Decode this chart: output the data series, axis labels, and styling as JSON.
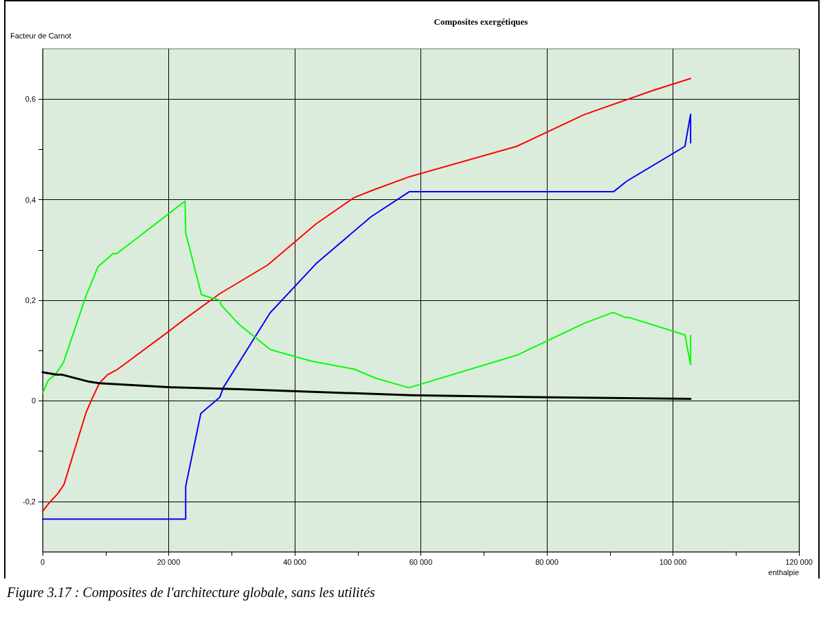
{
  "chart_data": {
    "type": "line",
    "title": "Composites exergétiques",
    "xlabel": "enthalpie",
    "ylabel": "Facteur de Carnot",
    "annotations": [
      "Figure 3.17 : Composites de l'architecture globale, sans les utilités"
    ],
    "xlim": [
      0,
      120000
    ],
    "xticks": [
      0,
      {
        "value": 10000,
        "label": null
      },
      {
        "value": 20000,
        "label": "20 000"
      },
      {
        "value": 30000,
        "label": null
      },
      {
        "value": 40000,
        "label": "40 000"
      },
      {
        "value": 50000,
        "label": null
      },
      {
        "value": 60000,
        "label": "60 000"
      },
      {
        "value": 70000,
        "label": null
      },
      {
        "value": 80000,
        "label": "80 000"
      },
      {
        "value": 90000,
        "label": null
      },
      {
        "value": 100000,
        "label": "100 000"
      },
      {
        "value": 110000,
        "label": null
      },
      {
        "value": 120000,
        "label": "120 000"
      }
    ],
    "ylim": [
      -0.3,
      0.7
    ],
    "yticks": [
      {
        "value": -0.2,
        "label": "-0,2"
      },
      {
        "value": -0.1,
        "label": null
      },
      0,
      {
        "value": 0.1,
        "label": null
      },
      {
        "value": 0.2,
        "label": "0,2"
      },
      {
        "value": 0.3,
        "label": null
      },
      {
        "value": 0.4,
        "label": "0,4"
      },
      {
        "value": 0.5,
        "label": null
      },
      {
        "value": 0.6,
        "label": "0,6"
      }
    ],
    "grid": true,
    "marker": "none",
    "line_style": "solid",
    "series": [
      {
        "color": "#ff0000",
        "x": [
          0,
          900,
          2500,
          3400,
          6900,
          7700,
          9000,
          10300,
          11800,
          12900,
          20000,
          22700,
          28100,
          35700,
          43400,
          49400,
          52600,
          58300,
          75200,
          85900,
          96800,
          102800
        ],
        "values": [
          -0.22,
          -0.205,
          -0.183,
          -0.166,
          -0.023,
          0,
          0.035,
          0.052,
          0.062,
          0.072,
          0.138,
          0.164,
          0.213,
          0.27,
          0.352,
          0.404,
          0.42,
          0.446,
          0.506,
          0.569,
          0.617,
          0.641
        ]
      },
      {
        "color": "#0000ff",
        "x": [
          0,
          22700,
          22700,
          25100,
          28100,
          28700,
          36100,
          43400,
          52100,
          58200,
          90600,
          92700,
          101900,
          102800,
          102800
        ],
        "values": [
          -0.235,
          -0.235,
          -0.17,
          -0.025,
          0.007,
          0.027,
          0.175,
          0.273,
          0.366,
          0.416,
          0.416,
          0.437,
          0.506,
          0.57,
          0.513
        ]
      },
      {
        "color": "#00ff00",
        "x": [
          0,
          900,
          2000,
          3300,
          6900,
          8800,
          11200,
          11800,
          22600,
          22700,
          25200,
          28100,
          28300,
          31000,
          36100,
          42600,
          49400,
          52900,
          58100,
          75300,
          85900,
          90500,
          92400,
          93000,
          101900,
          102800,
          102800
        ],
        "values": [
          0.015,
          0.041,
          0.052,
          0.076,
          0.209,
          0.267,
          0.293,
          0.293,
          0.397,
          0.334,
          0.211,
          0.2,
          0.191,
          0.154,
          0.102,
          0.079,
          0.063,
          0.045,
          0.026,
          0.091,
          0.154,
          0.176,
          0.166,
          0.166,
          0.131,
          0.072,
          0.13
        ]
      },
      {
        "color": "#000000",
        "x": [
          0,
          2200,
          3100,
          7400,
          9000,
          20500,
          31400,
          58600,
          80400,
          102800
        ],
        "values": [
          0.057,
          0.052,
          0.052,
          0.038,
          0.035,
          0.027,
          0.023,
          0.011,
          0.007,
          0.004
        ]
      }
    ]
  }
}
